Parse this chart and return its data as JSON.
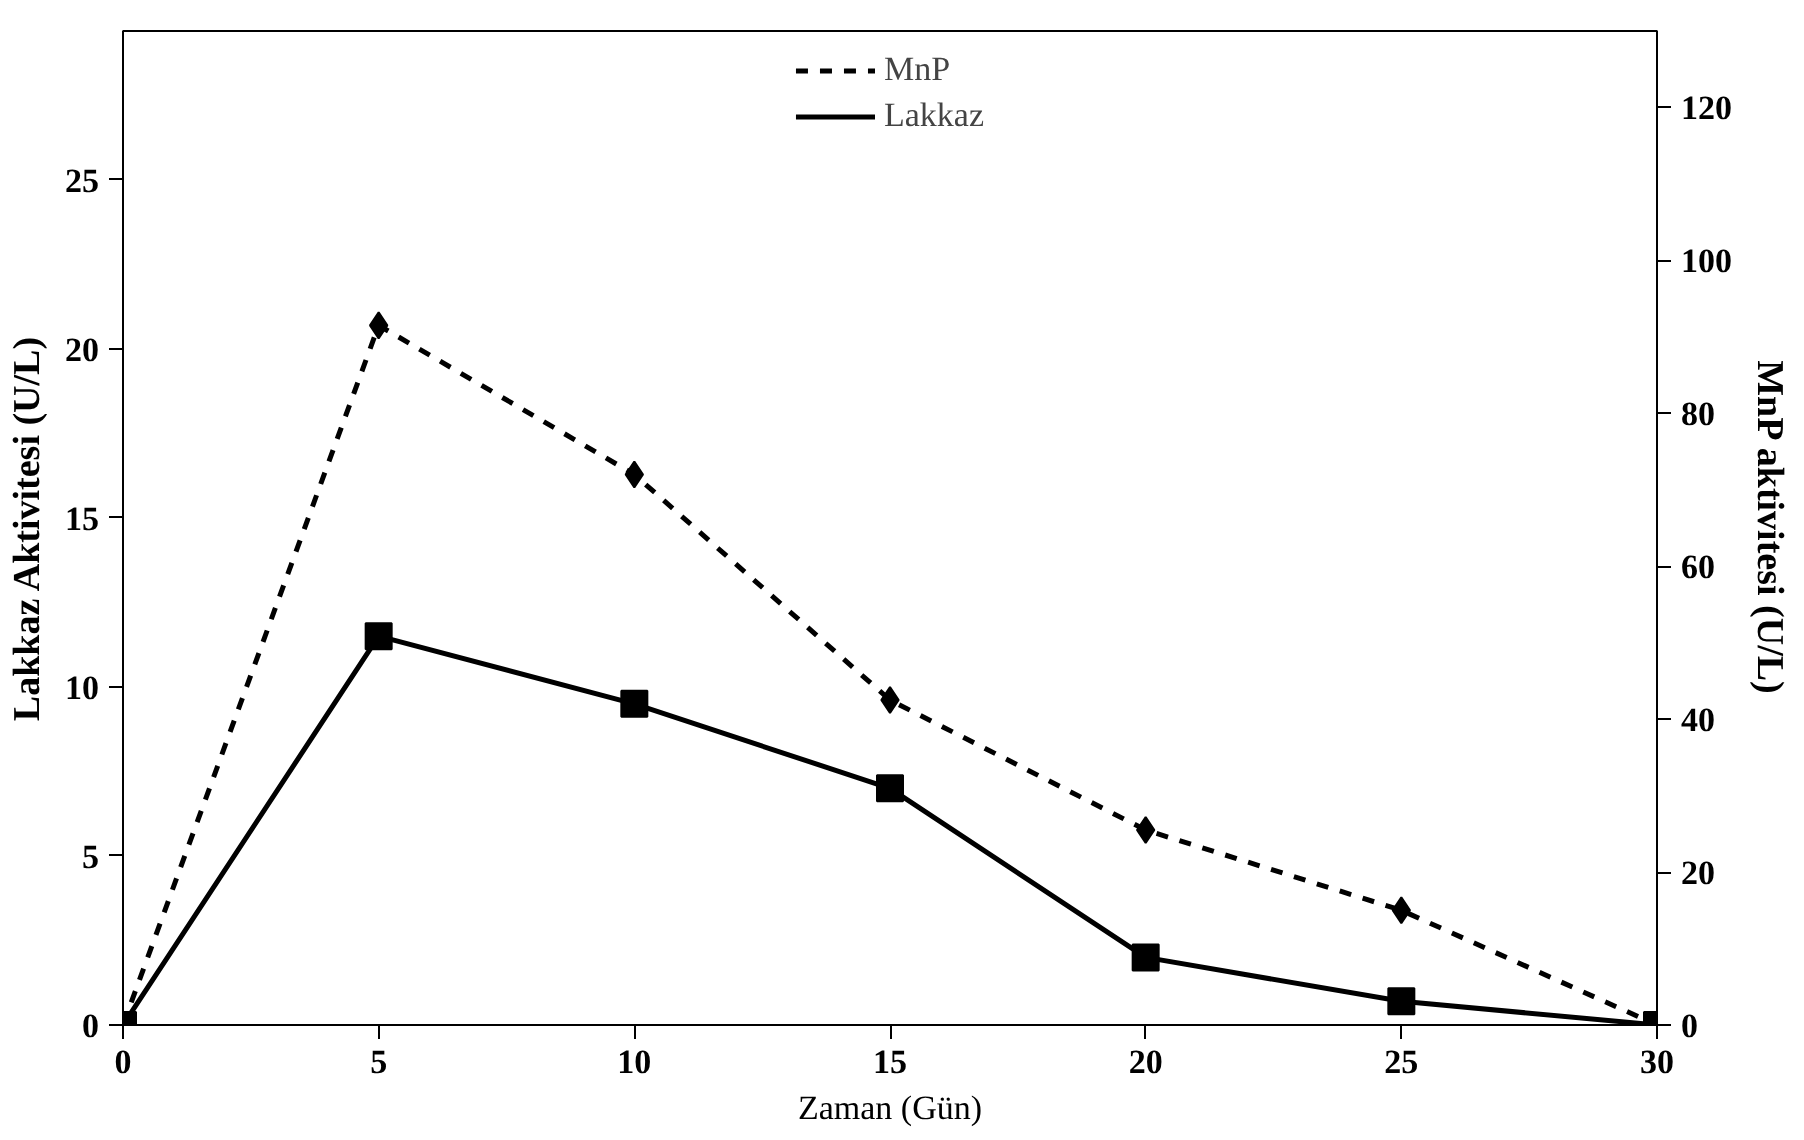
{
  "chart_data": {
    "type": "line",
    "xlabel": "Zaman (Gün)",
    "ylabel": "Lakkaz Aktivitesi (U/L)",
    "y2label": "MnP aktivitesi (U/L)",
    "x": [
      0,
      5,
      10,
      15,
      20,
      25,
      30
    ],
    "series": [
      {
        "name": "MnP",
        "color": "#000000",
        "axis": "y2",
        "marker": "diamond",
        "line_style": "dashed",
        "values": [
          0,
          91.5,
          72,
          42.5,
          25.5,
          15,
          0
        ]
      },
      {
        "name": "Lakkaz",
        "color": "#000000",
        "marker": "square",
        "line_style": "solid",
        "values": [
          0,
          11.5,
          9.5,
          7,
          2,
          0.7,
          0
        ]
      }
    ],
    "xlim": [
      0,
      30
    ],
    "xticks": [
      0,
      5,
      10,
      15,
      20,
      25,
      30
    ],
    "ylim": [
      0,
      29.4
    ],
    "yticks": [
      0,
      5,
      10,
      15,
      20,
      25
    ],
    "y2lim": [
      0,
      130
    ],
    "y2ticks": [
      0,
      20,
      40,
      60,
      80,
      100,
      120
    ],
    "grid": false,
    "legend": "top"
  }
}
